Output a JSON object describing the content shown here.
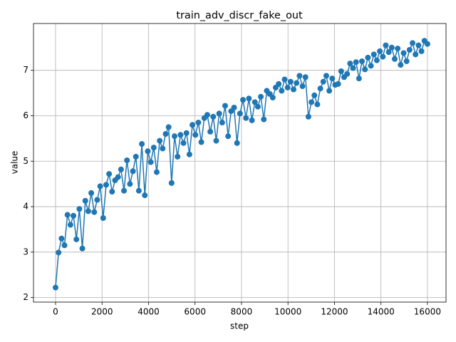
{
  "chart_data": {
    "type": "line",
    "title": "train_adv_discr_fake_out",
    "x_label": "step",
    "y_label": "value",
    "series": [
      {
        "name": "value",
        "color": "#1f77b4",
        "x": [
          0,
          128,
          256,
          384,
          512,
          640,
          768,
          896,
          1024,
          1152,
          1280,
          1408,
          1536,
          1664,
          1792,
          1920,
          2048,
          2176,
          2304,
          2432,
          2560,
          2688,
          2816,
          2944,
          3072,
          3200,
          3328,
          3456,
          3584,
          3712,
          3840,
          3968,
          4096,
          4224,
          4352,
          4480,
          4608,
          4736,
          4864,
          4992,
          5120,
          5248,
          5376,
          5504,
          5632,
          5760,
          5888,
          6016,
          6144,
          6272,
          6400,
          6528,
          6656,
          6784,
          6912,
          7040,
          7168,
          7296,
          7424,
          7552,
          7680,
          7808,
          7936,
          8064,
          8192,
          8320,
          8448,
          8576,
          8704,
          8832,
          8960,
          9088,
          9216,
          9344,
          9472,
          9600,
          9728,
          9856,
          9984,
          10112,
          10240,
          10368,
          10496,
          10624,
          10752,
          10880,
          11008,
          11136,
          11264,
          11392,
          11520,
          11648,
          11776,
          11904,
          12032,
          12160,
          12288,
          12416,
          12544,
          12672,
          12800,
          12928,
          13056,
          13184,
          13312,
          13440,
          13568,
          13696,
          13824,
          13952,
          14080,
          14208,
          14336,
          14464,
          14592,
          14720,
          14848,
          14976,
          15104,
          15232,
          15360,
          15488,
          15616,
          15744,
          15872,
          16000
        ],
        "values": [
          2.22,
          2.99,
          3.3,
          3.15,
          3.82,
          3.6,
          3.8,
          3.28,
          3.95,
          3.08,
          4.13,
          3.9,
          4.3,
          3.88,
          4.15,
          4.45,
          3.75,
          4.48,
          4.72,
          4.33,
          4.58,
          4.65,
          4.82,
          4.35,
          5.02,
          4.5,
          4.78,
          5.1,
          4.35,
          5.38,
          4.25,
          5.22,
          4.98,
          5.3,
          4.76,
          5.45,
          5.28,
          5.6,
          5.75,
          4.52,
          5.55,
          5.1,
          5.58,
          5.4,
          5.62,
          5.15,
          5.8,
          5.58,
          5.85,
          5.42,
          5.95,
          6.02,
          5.65,
          5.98,
          5.45,
          6.05,
          5.85,
          6.22,
          5.55,
          6.1,
          6.18,
          5.4,
          6.05,
          6.35,
          5.95,
          6.38,
          5.9,
          6.3,
          6.2,
          6.42,
          5.92,
          6.55,
          6.48,
          6.4,
          6.62,
          6.7,
          6.55,
          6.8,
          6.62,
          6.75,
          6.58,
          6.72,
          6.88,
          6.65,
          6.85,
          5.98,
          6.3,
          6.45,
          6.25,
          6.6,
          6.75,
          6.88,
          6.55,
          6.82,
          6.68,
          6.7,
          6.98,
          6.85,
          6.92,
          7.15,
          7.05,
          7.18,
          6.82,
          7.2,
          7.02,
          7.28,
          7.1,
          7.35,
          7.22,
          7.42,
          7.3,
          7.55,
          7.4,
          7.5,
          7.25,
          7.48,
          7.12,
          7.38,
          7.2,
          7.45,
          7.6,
          7.35,
          7.55,
          7.42,
          7.65,
          7.58
        ]
      }
    ],
    "xlim": [
      -950,
      16800
    ],
    "ylim": [
      1.9,
      8.03
    ],
    "xticks": [
      0,
      2000,
      4000,
      6000,
      8000,
      10000,
      12000,
      14000,
      16000
    ],
    "yticks": [
      2,
      3,
      4,
      5,
      6,
      7
    ],
    "grid": true
  }
}
